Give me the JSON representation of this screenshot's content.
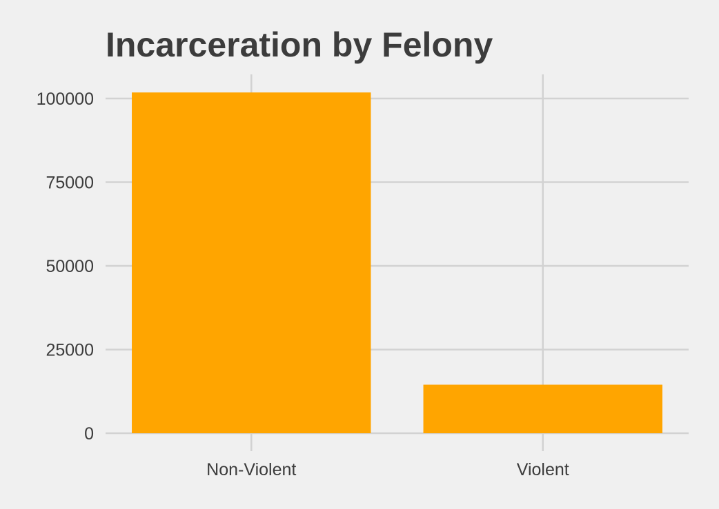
{
  "chart_data": {
    "type": "bar",
    "title": "Incarceration by Felony",
    "xlabel": "",
    "ylabel": "",
    "categories": [
      "Non-Violent",
      "Violent"
    ],
    "values": [
      101800,
      14500
    ],
    "ylim": [
      0,
      107000
    ],
    "y_ticks": [
      0,
      25000,
      50000,
      75000,
      100000
    ],
    "y_tick_labels": [
      "0",
      "25000",
      "50000",
      "75000",
      "100000"
    ],
    "bar_color": "#ffa500",
    "grid": true,
    "legend": "none"
  }
}
